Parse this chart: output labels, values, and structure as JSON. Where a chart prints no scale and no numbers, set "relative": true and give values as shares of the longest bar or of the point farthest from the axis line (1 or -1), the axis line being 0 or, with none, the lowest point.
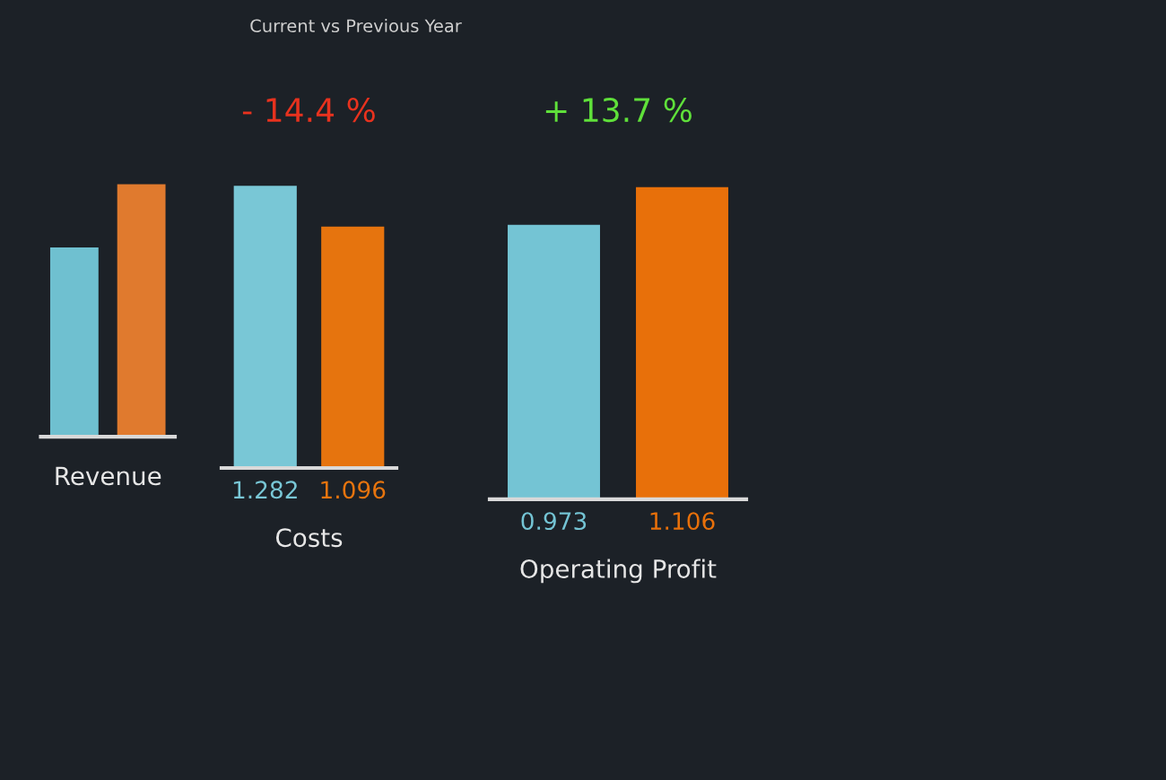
{
  "chart_data": [
    {
      "type": "bar",
      "relative": true,
      "categories": [
        null,
        null
      ],
      "values": [
        0.75,
        1
      ],
      "colors": [
        "#6fc0d0",
        "#e07a2e"
      ],
      "xlabel": "Revenue"
    },
    {
      "type": "bar",
      "title": "- 14.4 %",
      "subtitle": "Current vs Previous Year",
      "categories": [
        null,
        null
      ],
      "values": [
        1.282,
        1.096
      ],
      "colors": [
        "#79c7d6",
        "#e6740e"
      ],
      "xlabel": "Costs",
      "data_labels": true,
      "tick_labels": false
    },
    {
      "type": "bar",
      "title": "+ 13.7 %",
      "categories": [
        null,
        null
      ],
      "values": [
        0.973,
        1.106
      ],
      "colors": [
        "#74c4d4",
        "#e8700a"
      ],
      "xlabel": "Operating Profit",
      "data_labels": true,
      "tick_labels": false
    }
  ]
}
